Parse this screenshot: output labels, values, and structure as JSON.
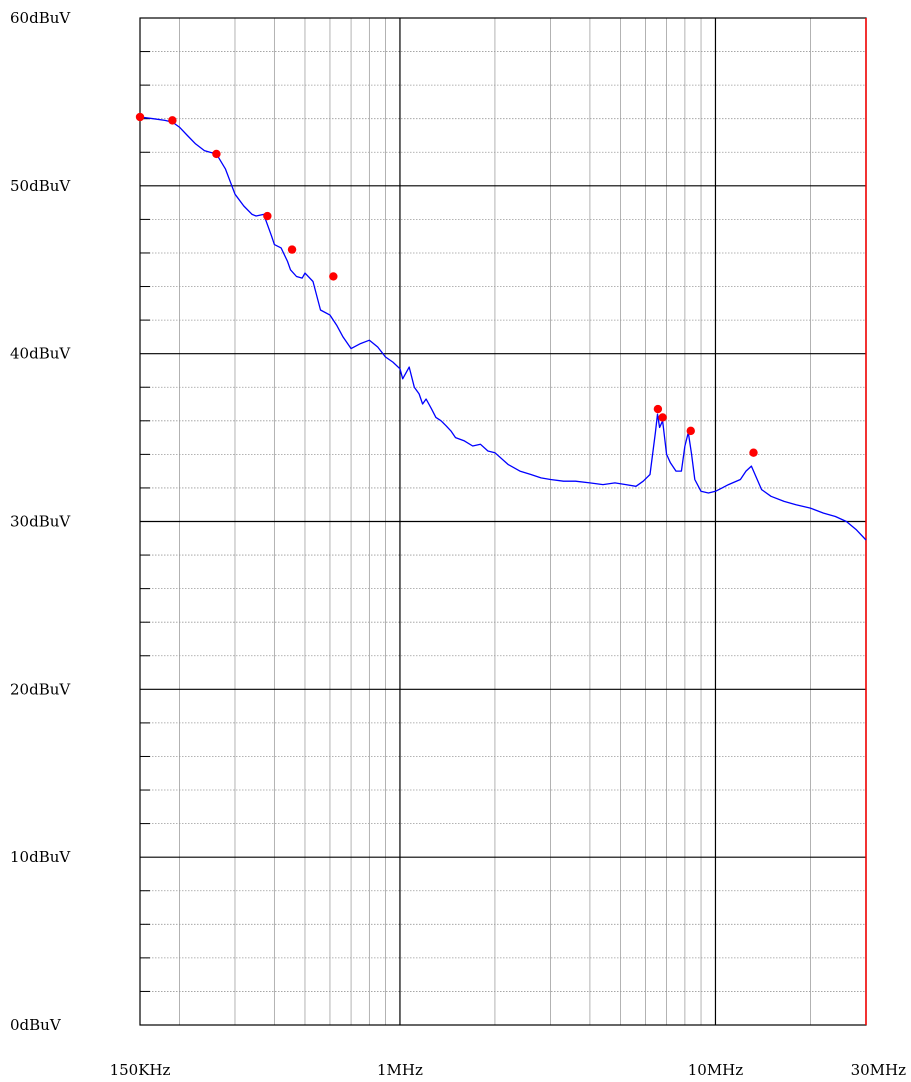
{
  "chart_data": {
    "type": "line",
    "x_scale": "log",
    "x_unit": "Hz",
    "xlim": [
      150000,
      30000000
    ],
    "ylim": [
      0,
      60
    ],
    "grid": true,
    "y_tick_values": [
      0,
      10,
      20,
      30,
      40,
      50,
      60
    ],
    "y_tick_labels": [
      "0dBuV",
      "10dBuV",
      "20dBuV",
      "30dBuV",
      "40dBuV",
      "50dBuV",
      "60dBuV"
    ],
    "x_tick_values": [
      150000,
      1000000,
      10000000,
      30000000
    ],
    "x_tick_labels": [
      "150KHz",
      "1MHz",
      "10MHz",
      "30MHz"
    ],
    "colors": {
      "trace": "#0000ff",
      "markers": "#ff0000",
      "right_border": "#ff0000"
    },
    "series": [
      {
        "x": [
          150000,
          165000,
          180000,
          190000,
          200000,
          212000,
          225000,
          240000,
          250000,
          262000,
          280000,
          300000,
          320000,
          340000,
          350000,
          370000,
          392000,
          400000,
          420000,
          440000,
          450000,
          470000,
          490000,
          500000,
          530000,
          560000,
          600000,
          630000,
          660000,
          700000,
          750000,
          800000,
          850000,
          900000,
          950000,
          1000000,
          1020000,
          1070000,
          1110000,
          1150000,
          1180000,
          1210000,
          1260000,
          1300000,
          1350000,
          1400000,
          1450000,
          1500000,
          1600000,
          1700000,
          1800000,
          1900000,
          2000000,
          2200000,
          2400000,
          2600000,
          2800000,
          3000000,
          3300000,
          3600000,
          4000000,
          4400000,
          4800000,
          5200000,
          5600000,
          5900000,
          6200000,
          6450000,
          6550000,
          6650000,
          6800000,
          7000000,
          7200000,
          7500000,
          7800000,
          8000000,
          8200000,
          8400000,
          8600000,
          9000000,
          9500000,
          10000000,
          10500000,
          11000000,
          12000000,
          12500000,
          13000000,
          14000000,
          15000000,
          16500000,
          18000000,
          20000000,
          22000000,
          24000000,
          26000000,
          28000000,
          30000000
        ],
        "y": [
          54.1,
          54.0,
          53.9,
          53.8,
          53.5,
          53.0,
          52.5,
          52.1,
          52.0,
          51.9,
          51.0,
          49.5,
          48.8,
          48.3,
          48.2,
          48.3,
          47.0,
          46.5,
          46.3,
          45.5,
          45.0,
          44.6,
          44.5,
          44.8,
          44.3,
          42.6,
          42.3,
          41.7,
          41.0,
          40.3,
          40.6,
          40.8,
          40.4,
          39.8,
          39.5,
          39.1,
          38.5,
          39.2,
          38.0,
          37.6,
          37.0,
          37.3,
          36.7,
          36.2,
          36.0,
          35.7,
          35.4,
          35.0,
          34.8,
          34.5,
          34.6,
          34.2,
          34.1,
          33.4,
          33.0,
          32.8,
          32.6,
          32.5,
          32.4,
          32.4,
          32.3,
          32.2,
          32.3,
          32.2,
          32.1,
          32.4,
          32.8,
          35.3,
          36.4,
          35.6,
          36.0,
          34.0,
          33.5,
          33.0,
          33.0,
          34.5,
          35.3,
          34.0,
          32.5,
          31.8,
          31.7,
          31.8,
          32.0,
          32.2,
          32.5,
          33.0,
          33.3,
          31.9,
          31.5,
          31.2,
          31.0,
          30.8,
          30.5,
          30.3,
          30.0,
          29.5,
          28.9
        ]
      }
    ],
    "markers": {
      "x": [
        150000,
        190000,
        262000,
        380000,
        455000,
        615000,
        6570000,
        6800000,
        8350000,
        13200000
      ],
      "y": [
        54.1,
        53.9,
        51.9,
        48.2,
        46.2,
        44.6,
        36.7,
        36.2,
        35.4,
        34.1
      ]
    }
  }
}
